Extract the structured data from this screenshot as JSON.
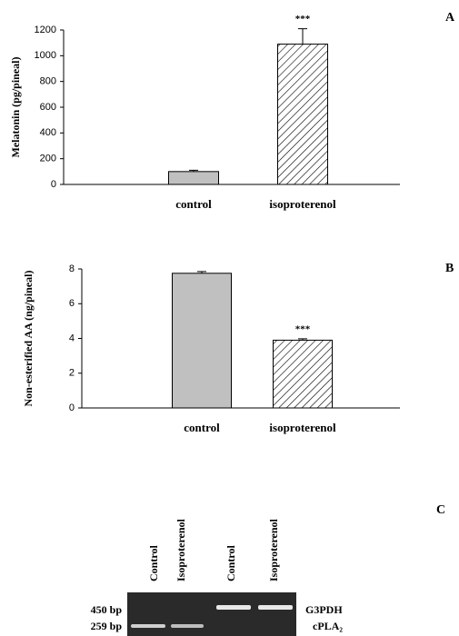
{
  "chart_data": [
    {
      "type": "bar",
      "panel_label": "A",
      "y_label": "Melatonin (pg/pineal)",
      "categories": [
        "control",
        "isoproterenol"
      ],
      "values": [
        100,
        1090
      ],
      "errors": [
        10,
        120
      ],
      "colors": [
        "#c0c0c0",
        "#ffffff"
      ],
      "hatch": [
        false,
        true
      ],
      "significance": [
        null,
        "***"
      ],
      "ylim": [
        0,
        1200
      ],
      "yticks": [
        0,
        200,
        400,
        600,
        800,
        1000,
        1200
      ],
      "grid": false
    },
    {
      "type": "bar",
      "panel_label": "B",
      "y_label": "Non-esterified AA (ng/pineal)",
      "categories": [
        "control",
        "isoproterenol"
      ],
      "values": [
        7.75,
        3.9
      ],
      "errors": [
        0.1,
        0.08
      ],
      "colors": [
        "#c0c0c0",
        "#ffffff"
      ],
      "hatch": [
        false,
        true
      ],
      "significance": [
        null,
        "***"
      ],
      "ylim": [
        0,
        8
      ],
      "yticks": [
        0,
        2,
        4,
        6,
        8
      ],
      "grid": false
    }
  ],
  "panel_c": {
    "label": "C",
    "lanes": [
      "Control",
      "Isoproterenol",
      "Control",
      "Isoproterenol"
    ],
    "size_markers": [
      "450 bp",
      "259 bp"
    ],
    "genes": [
      "G3PDH",
      "cPLA₂"
    ]
  }
}
